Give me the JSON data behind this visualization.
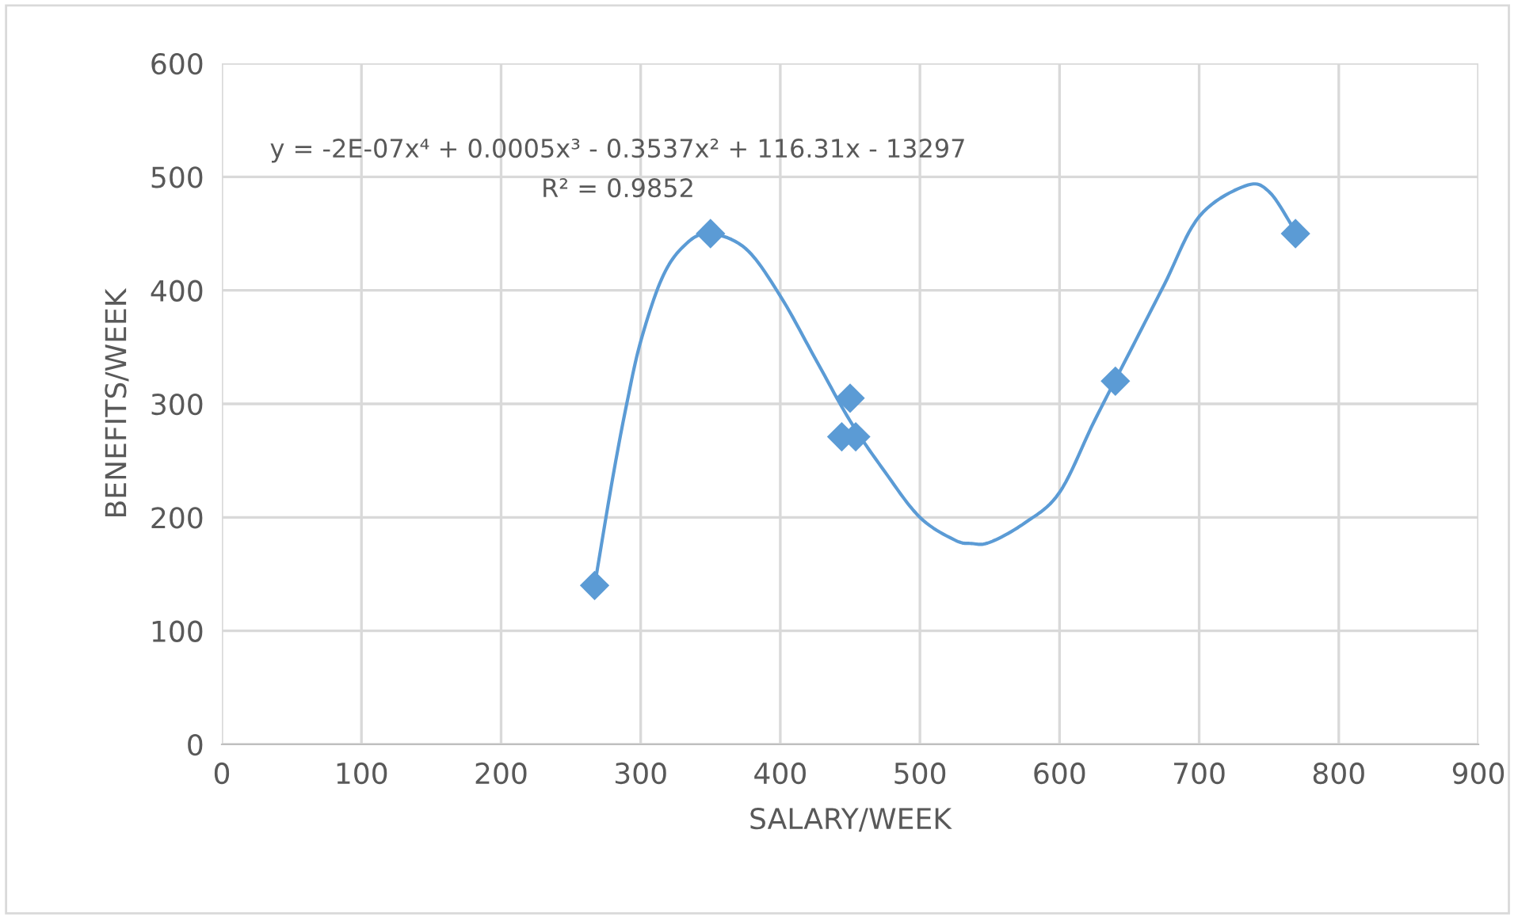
{
  "chart_data": {
    "type": "scatter",
    "xlabel": "SALARY/WEEK",
    "ylabel": "BENEFITS/WEEK",
    "xlim": [
      0,
      900
    ],
    "xticks": [
      0,
      100,
      200,
      300,
      400,
      500,
      600,
      700,
      800,
      900
    ],
    "ylim": [
      0,
      600
    ],
    "yticks": [
      0,
      100,
      200,
      300,
      400,
      500,
      600
    ],
    "grid": true,
    "legend": false,
    "marker": "diamond",
    "series": [
      {
        "color": "#5b9bd5",
        "x": [
          267,
          350,
          450,
          444,
          454,
          640,
          769
        ],
        "values": [
          140,
          450,
          305,
          271,
          271,
          320,
          450
        ]
      },
      {
        "type": "line",
        "color": "#5b9bd5",
        "marker": "none",
        "line_style": "solid",
        "x": [
          267,
          280,
          290,
          300,
          315,
          330,
          348,
          375,
          400,
          425,
          450,
          475,
          500,
          525,
          537,
          550,
          575,
          600,
          625,
          650,
          675,
          700,
          733,
          750,
          769
        ],
        "values": [
          140,
          235,
          300,
          355,
          410,
          438,
          450,
          437,
          395,
          340,
          285,
          240,
          200,
          180,
          177,
          178,
          195,
          222,
          285,
          345,
          405,
          465,
          492,
          487,
          452
        ]
      }
    ],
    "annotations": [
      "y = -2E-07x⁴ + 0.0005x³ - 0.3537x² + 116.31x - 13297",
      "R² = 0.9852"
    ]
  }
}
